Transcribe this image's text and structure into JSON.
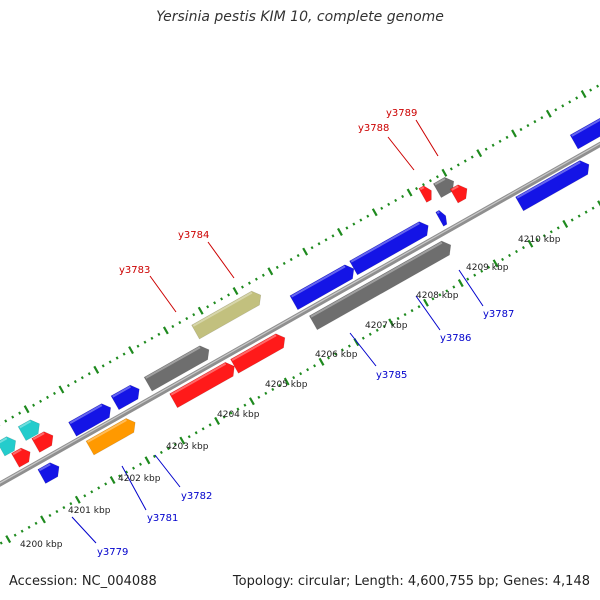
{
  "title": "Yersinia pestis KIM 10, complete genome",
  "footer": {
    "accession": "Accession: NC_004088",
    "summary": "Topology: circular; Length: 4,600,755 bp; Genes: 4,148"
  },
  "colors": {
    "backbone": "#8f8f8f",
    "ticks": "#1e8a1e",
    "red": "#ff1a1a",
    "blue": "#1414e6",
    "gray": "#6e6e6e",
    "khaki": "#c2c07e",
    "cyan": "#24cccc",
    "orange": "#ff9900",
    "label_red": "#cc0000",
    "label_blue": "#0000cc"
  },
  "kbp_labels": [
    "4200 kbp",
    "4201 kbp",
    "4202 kbp",
    "4203 kbp",
    "4204 kbp",
    "4205 kbp",
    "4206 kbp",
    "4207 kbp",
    "4208 kbp",
    "4209 kbp",
    "4210 kbp"
  ],
  "gene_labels": [
    "y3779",
    "y3781",
    "y3782",
    "y3783",
    "y3784",
    "y3785",
    "y3786",
    "y3787",
    "y3788",
    "y3789"
  ]
}
